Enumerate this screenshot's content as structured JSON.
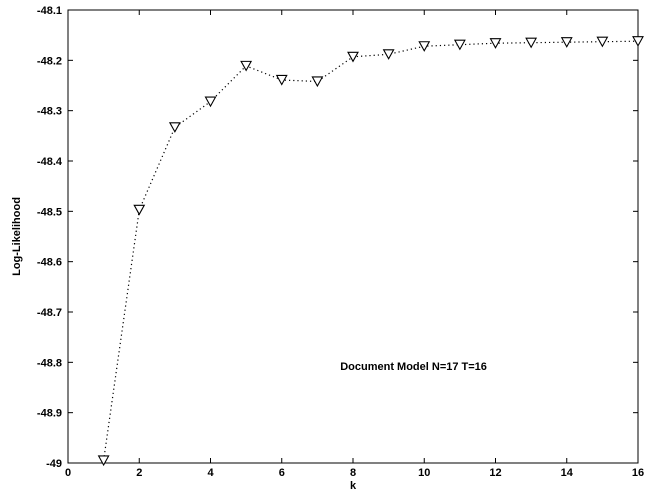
{
  "chart_data": {
    "type": "line",
    "title": "",
    "xlabel": "k",
    "ylabel": "Log-Likelihood",
    "xlim": [
      0,
      16
    ],
    "ylim": [
      -49,
      -48.1
    ],
    "xticks": [
      0,
      2,
      4,
      6,
      8,
      10,
      12,
      14,
      16
    ],
    "yticks": [
      -49,
      -48.9,
      -48.8,
      -48.7,
      -48.6,
      -48.5,
      -48.4,
      -48.3,
      -48.2,
      -48.1
    ],
    "xtick_labels": [
      "0",
      "2",
      "4",
      "6",
      "8",
      "10",
      "12",
      "14",
      "16"
    ],
    "ytick_labels": [
      "-49",
      "-48.9",
      "-48.8",
      "-48.7",
      "-48.6",
      "-48.5",
      "-48.4",
      "-48.3",
      "-48.2",
      "-48.1"
    ],
    "grid": false,
    "series": [
      {
        "marker": "triangle-down",
        "line_style": "dotted",
        "color": "#000000",
        "x": [
          1,
          2,
          3,
          4,
          5,
          6,
          7,
          8,
          9,
          10,
          11,
          12,
          13,
          14,
          15,
          16
        ],
        "y": [
          -48.995,
          -48.497,
          -48.333,
          -48.282,
          -48.211,
          -48.239,
          -48.242,
          -48.193,
          -48.188,
          -48.172,
          -48.169,
          -48.166,
          -48.165,
          -48.164,
          -48.163,
          -48.162
        ]
      }
    ],
    "annotations": [
      {
        "text": "Document Model  N=17 T=16",
        "x": 9.7,
        "y": -48.815
      }
    ]
  }
}
